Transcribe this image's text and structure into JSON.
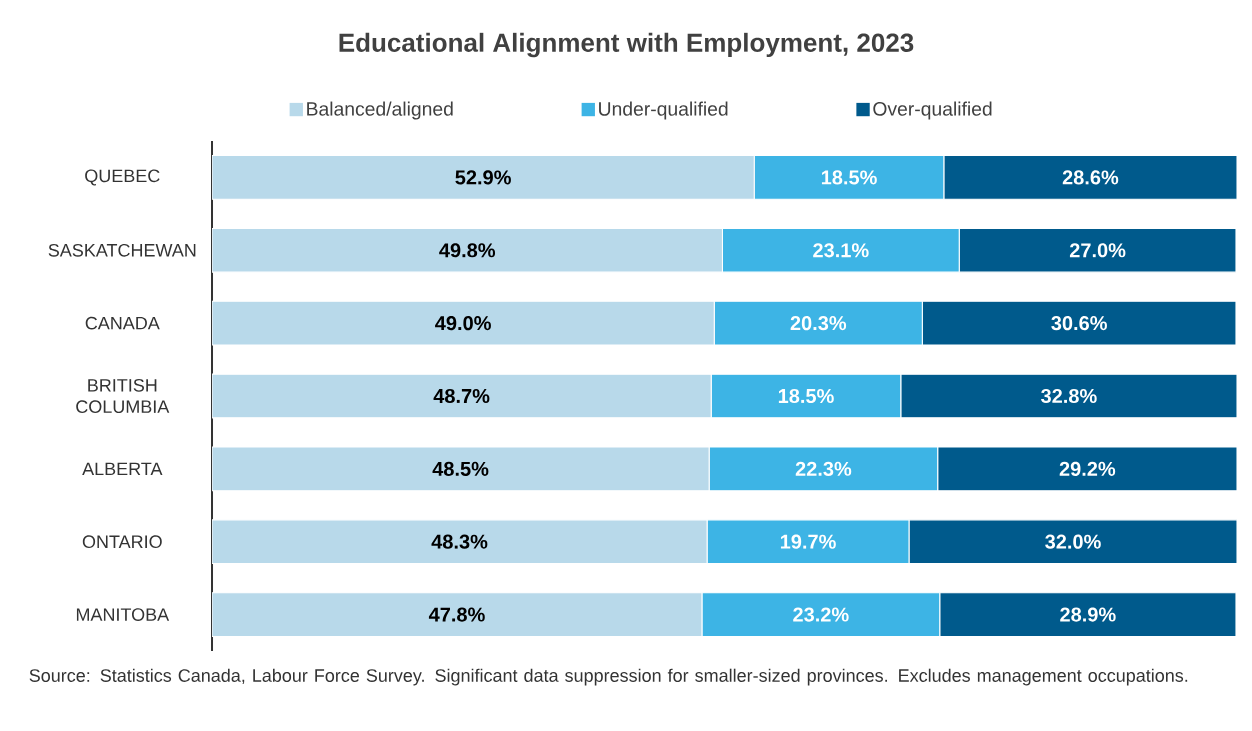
{
  "chart_data": {
    "type": "bar",
    "orientation": "horizontal",
    "stacked": true,
    "title": "Educational Alignment with Employment, 2023",
    "categories": [
      "QUEBEC",
      "SASKATCHEWAN",
      "CANADA",
      "BRITISH COLUMBIA",
      "ALBERTA",
      "ONTARIO",
      "MANITOBA"
    ],
    "series": [
      {
        "name": "Balanced/aligned",
        "color": "#b8d9ea",
        "values": [
          52.9,
          49.8,
          49.0,
          48.7,
          48.5,
          48.3,
          47.8
        ],
        "value_labels": [
          "52.9%",
          "49.8%",
          "49.0%",
          "48.7%",
          "48.5%",
          "48.3%",
          "47.8%"
        ]
      },
      {
        "name": "Under-qualified",
        "color": "#3db4e5",
        "values": [
          18.5,
          23.1,
          20.3,
          18.5,
          22.3,
          19.7,
          23.2
        ],
        "value_labels": [
          "18.5%",
          "23.1%",
          "20.3%",
          "18.5%",
          "22.3%",
          "19.7%",
          "23.2%"
        ]
      },
      {
        "name": "Over-qualified",
        "color": "#005a8c",
        "values": [
          28.6,
          27.0,
          30.6,
          32.8,
          29.2,
          32.0,
          28.9
        ],
        "value_labels": [
          "28.6%",
          "27.0%",
          "30.6%",
          "32.8%",
          "29.2%",
          "32.0%",
          "28.9%"
        ]
      }
    ],
    "xlim": [
      0,
      100
    ],
    "tick_labels": "y",
    "legend": "top",
    "grid": false,
    "annotations": [
      "Source: Statistics Canada, Labour Force Survey.  Significant data suppression for smaller-sized provinces. Excludes management occupations."
    ]
  }
}
